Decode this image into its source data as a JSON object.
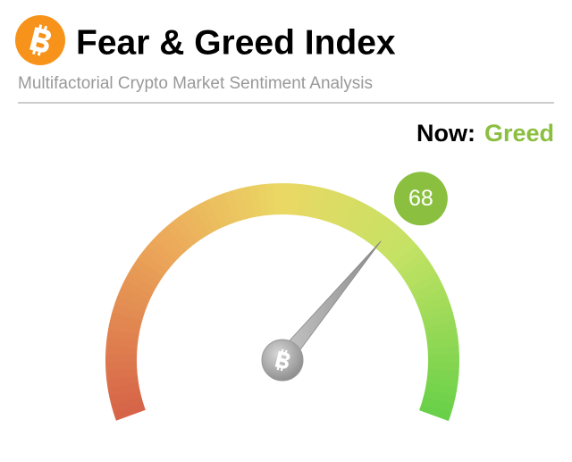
{
  "chart_data": {
    "type": "gauge",
    "title": "Fear & Greed Index",
    "subtitle": "Multifactorial Crypto Market Sentiment Analysis",
    "status_label": "Now:",
    "status": "Greed",
    "status_color": "#8bbf3f",
    "value": 68,
    "ylim": [
      0,
      100
    ],
    "bubble_color": "#8bbf3f"
  }
}
